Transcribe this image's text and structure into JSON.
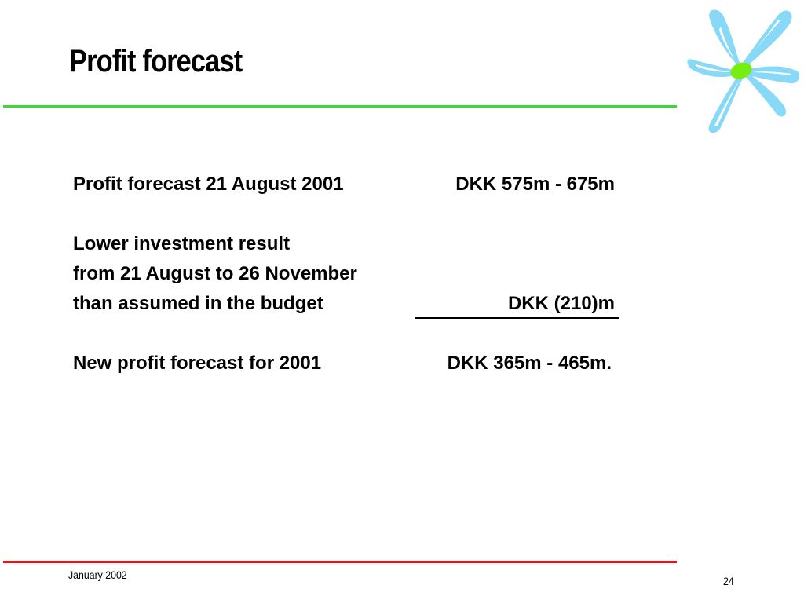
{
  "slide": {
    "title": "Profit forecast",
    "logo_icon": "flower-logo-icon",
    "colors": {
      "title_rule": "#33dd33",
      "footer_rule": "#ee1111",
      "logo_petals": "#88d8f8",
      "logo_center": "#77ee11"
    }
  },
  "rows": [
    {
      "label": "Profit forecast 21 August 2001",
      "value": "DKK 575m - 675m"
    },
    {
      "label": "Lower investment result",
      "value": ""
    },
    {
      "label": "from 21 August to 26 November",
      "value": ""
    },
    {
      "label": "than assumed in the budget",
      "value": "DKK (210)m"
    },
    {
      "label": "New profit forecast for 2001",
      "value": "DKK 365m - 465m."
    }
  ],
  "footer": {
    "date": "January 2002",
    "page_number": "24"
  }
}
